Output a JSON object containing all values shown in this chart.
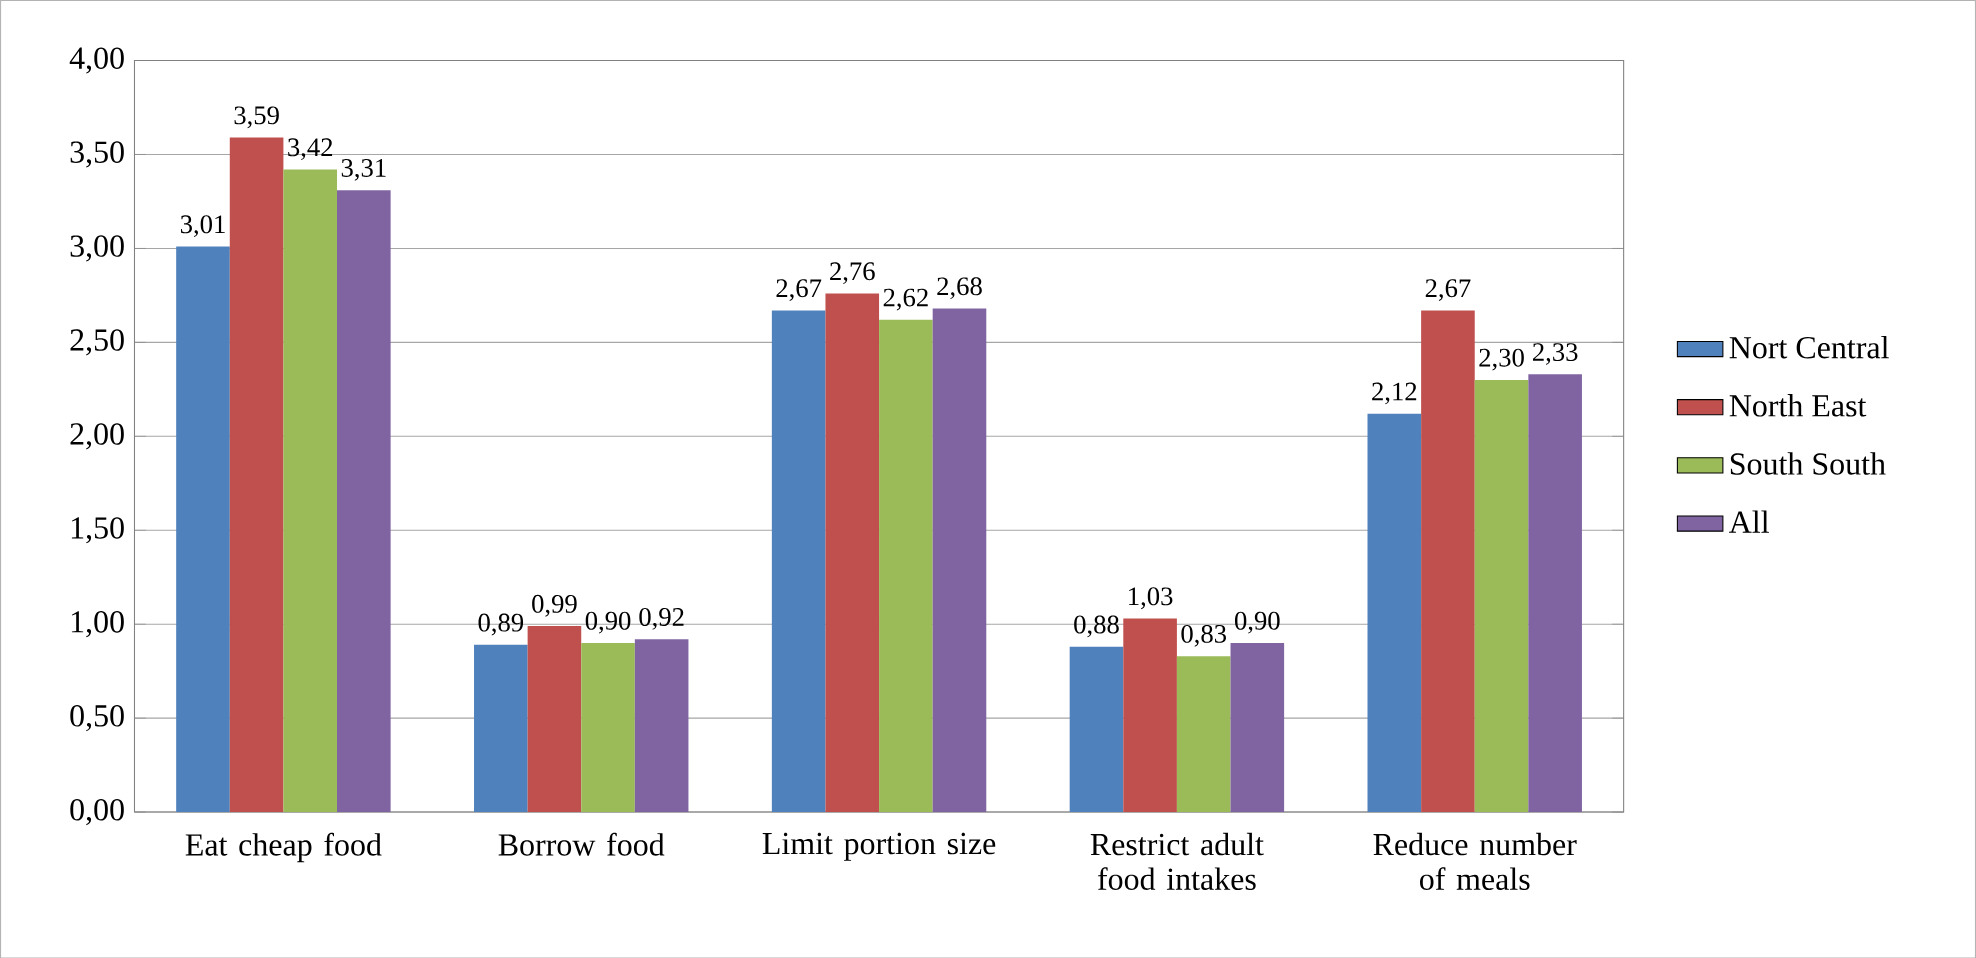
{
  "chart_data": {
    "type": "bar",
    "categories": [
      "Eat cheap food",
      "Borrow food",
      "Limit portion size",
      "Restrict adult food intakes",
      "Reduce number of meals"
    ],
    "series": [
      {
        "name": "Nort Central",
        "color": "#4f81bd",
        "values": [
          3.01,
          0.89,
          2.67,
          0.88,
          2.12
        ],
        "value_labels": [
          "3,01",
          "0,89",
          "2,67",
          "0,88",
          "2,12"
        ]
      },
      {
        "name": "North East",
        "color": "#c0504d",
        "values": [
          3.59,
          0.99,
          2.76,
          1.03,
          2.67
        ],
        "value_labels": [
          "3,59",
          "0,99",
          "2,76",
          "1,03",
          "2,67"
        ]
      },
      {
        "name": "South South",
        "color": "#9bbb59",
        "values": [
          3.42,
          0.9,
          2.62,
          0.83,
          2.3
        ],
        "value_labels": [
          "3,42",
          "0,90",
          "2,62",
          "0,83",
          "2,30"
        ]
      },
      {
        "name": "All",
        "color": "#8064a2",
        "values": [
          3.31,
          0.92,
          2.68,
          0.9,
          2.33
        ],
        "value_labels": [
          "3,31",
          "0,92",
          "2,68",
          "0,90",
          "2,33"
        ]
      }
    ],
    "ylim": [
      0,
      4
    ],
    "yticks": [
      {
        "value": 0,
        "label": "0,00"
      },
      {
        "value": 0.5,
        "label": "0,50"
      },
      {
        "value": 1,
        "label": "1,00"
      },
      {
        "value": 1.5,
        "label": "1,50"
      },
      {
        "value": 2,
        "label": "2,00"
      },
      {
        "value": 2.5,
        "label": "2,50"
      },
      {
        "value": 3,
        "label": "3,00"
      },
      {
        "value": 3.5,
        "label": "3,50"
      },
      {
        "value": 4,
        "label": "4,00"
      }
    ],
    "grid": "y",
    "legend": "right"
  }
}
